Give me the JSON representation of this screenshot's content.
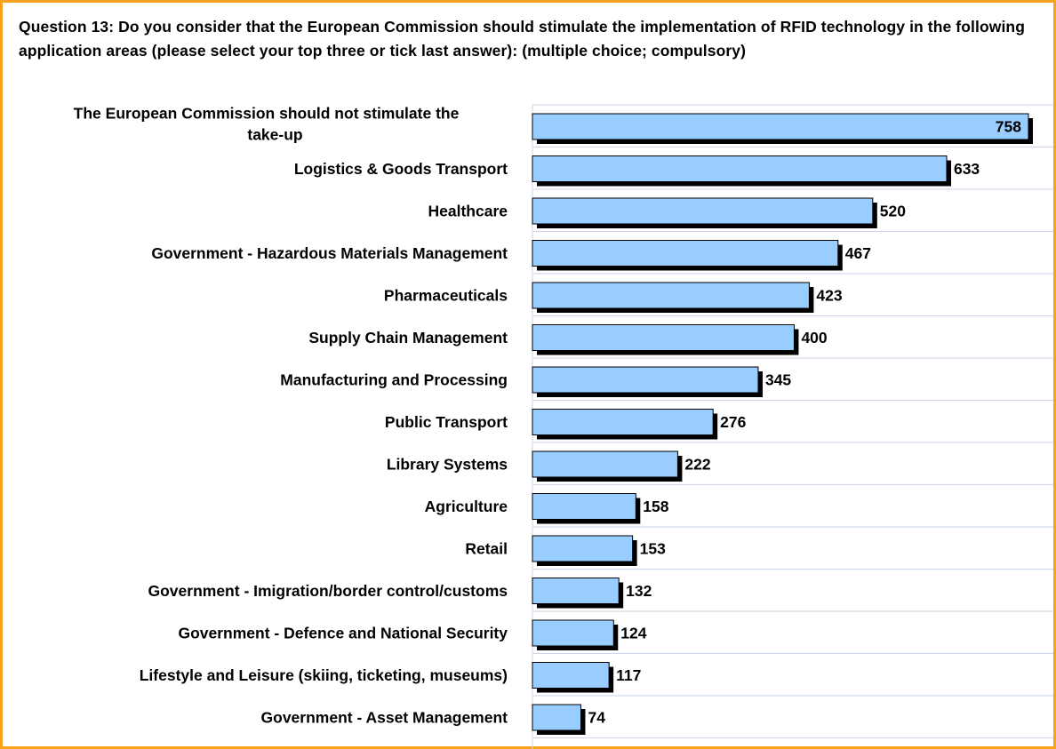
{
  "chart_data": {
    "type": "bar",
    "orientation": "horizontal",
    "title": "Question 13: Do you consider that the European Commission should stimulate the implementation of RFID technology in the following application areas (please select your top three or tick last answer): (multiple choice; compulsory)",
    "categories": [
      [
        "The European Commission should not stimulate the",
        "take-up"
      ],
      [
        "Logistics & Goods Transport"
      ],
      [
        "Healthcare"
      ],
      [
        "Government - Hazardous Materials Management"
      ],
      [
        "Pharmaceuticals"
      ],
      [
        "Supply Chain Management"
      ],
      [
        "Manufacturing and Processing"
      ],
      [
        "Public Transport"
      ],
      [
        "Library Systems"
      ],
      [
        "Agriculture"
      ],
      [
        "Retail"
      ],
      [
        "Government - Imigration/border control/customs"
      ],
      [
        "Government - Defence and National Security"
      ],
      [
        "Lifestyle and Leisure (skiing, ticketing, museums)"
      ],
      [
        "Government - Asset Management"
      ]
    ],
    "values": [
      758,
      633,
      520,
      467,
      423,
      400,
      345,
      276,
      222,
      158,
      153,
      132,
      124,
      117,
      74
    ],
    "xlim": [
      0,
      780
    ],
    "grid": true,
    "legend": "none",
    "colors": {
      "bar_fill": "#99ccff",
      "bar_stroke": "#000000",
      "bar_shadow": "#000000",
      "grid": "#c8d4ea",
      "frame": "#f7a21a"
    }
  }
}
